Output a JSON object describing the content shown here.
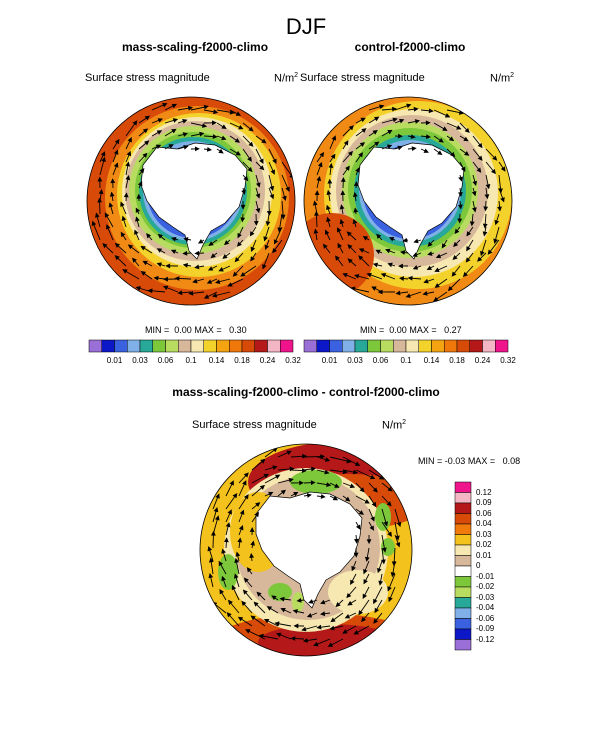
{
  "page": {
    "title": "DJF"
  },
  "panels": [
    {
      "title": "mass-scaling-f2000-climo",
      "variable": "Surface stress magnitude",
      "units": "N/m",
      "units_exp": "2",
      "min_label": "MIN =",
      "min": "0.00",
      "max_label": "MAX =",
      "max": "0.30"
    },
    {
      "title": "control-f2000-climo",
      "variable": "Surface stress magnitude",
      "units": "N/m",
      "units_exp": "2",
      "min_label": "MIN =",
      "min": "0.00",
      "max_label": "MAX =",
      "max": "0.27"
    },
    {
      "title": "mass-scaling-f2000-climo - control-f2000-climo",
      "variable": "Surface stress magnitude",
      "units": "N/m",
      "units_exp": "2",
      "min_label": "MIN =",
      "min": "-0.03",
      "max_label": "MAX =",
      "max": "0.08"
    }
  ],
  "colorbar_abs": {
    "ticks": [
      "0.01",
      "0.03",
      "0.06",
      "0.1",
      "0.14",
      "0.18",
      "0.24",
      "0.32"
    ],
    "colors": [
      "#9a6fd8",
      "#0c18c8",
      "#3a62e0",
      "#7fb0e8",
      "#28a898",
      "#7cc83a",
      "#b8dc60",
      "#d8b89a",
      "#f6e8b0",
      "#f4d22c",
      "#f4a410",
      "#f0780a",
      "#d84a08",
      "#b41818",
      "#f4b6c4",
      "#f0148c"
    ]
  },
  "colorbar_diff": {
    "ticks": [
      "0.12",
      "0.09",
      "0.06",
      "0.04",
      "0.03",
      "0.02",
      "0.01",
      "0",
      "-0.01",
      "-0.02",
      "-0.03",
      "-0.04",
      "-0.06",
      "-0.09",
      "-0.12"
    ],
    "colors": [
      "#f0148c",
      "#f4b6c4",
      "#b41818",
      "#d84a08",
      "#f07a0a",
      "#f4c21c",
      "#f6e8b0",
      "#d8b89a",
      "#ffffff",
      "#7cc83a",
      "#b8dc60",
      "#28a898",
      "#7fb0e8",
      "#3a62e0",
      "#0c18c8",
      "#9a6fd8"
    ]
  },
  "style": {
    "map_colors": {
      "band_orange": "#f08a14",
      "band_red": "#d84a08",
      "band_yellow": "#f4d22c",
      "tan": "#d8b89a",
      "cream": "#f6e8b0",
      "green": "#7cc83a",
      "lightgreen": "#b8dc60",
      "teal": "#28a898",
      "lightblue": "#7fb0e8",
      "blue": "#3a62e0",
      "darkblue": "#0c18c8",
      "land": "#ffffff",
      "coast": "#000000",
      "arrow": "#000000"
    }
  }
}
